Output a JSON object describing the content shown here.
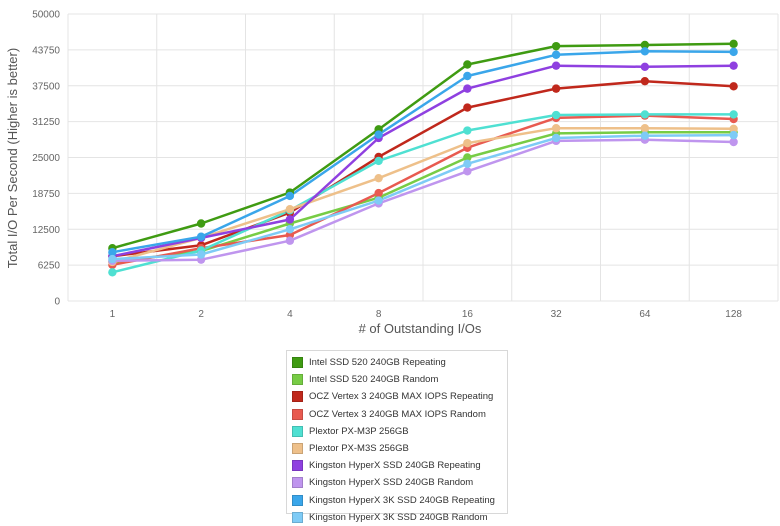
{
  "chart_data": {
    "type": "line",
    "xlabel": "# of Outstanding I/Os",
    "ylabel": "Total I/O Per Second (Higher is better)",
    "categories": [
      "1",
      "2",
      "4",
      "8",
      "16",
      "32",
      "64",
      "128"
    ],
    "y_ticks": [
      "0",
      "6250",
      "12500",
      "18750",
      "25000",
      "31250",
      "37500",
      "43750",
      "50000"
    ],
    "ylim": [
      0,
      50000
    ],
    "grid": true,
    "legend_position": "bottom",
    "series": [
      {
        "name": "Intel SSD 520 240GB Repeating",
        "color": "#3f9b12",
        "values": [
          9200,
          13500,
          18900,
          29900,
          41200,
          44400,
          44600,
          44800
        ]
      },
      {
        "name": "Intel SSD 520 240GB Random",
        "color": "#77cc45",
        "values": [
          6800,
          8700,
          13500,
          18000,
          25000,
          29200,
          29400,
          29400
        ]
      },
      {
        "name": "OCZ Vertex 3 240GB MAX IOPS Repeating",
        "color": "#c0281c",
        "values": [
          7800,
          9700,
          15400,
          25100,
          33700,
          37000,
          38300,
          37400
        ]
      },
      {
        "name": "OCZ Vertex 3 240GB MAX IOPS Random",
        "color": "#e85a50",
        "values": [
          6300,
          9200,
          11500,
          18800,
          26700,
          31900,
          32300,
          31700
        ]
      },
      {
        "name": "Plextor PX-M3P 256GB",
        "color": "#4fe0d2",
        "values": [
          5000,
          8800,
          15800,
          24400,
          29700,
          32400,
          32500,
          32500
        ]
      },
      {
        "name": "Plextor PX-M3S 256GB",
        "color": "#eec08a",
        "values": [
          6800,
          11000,
          16000,
          21400,
          27500,
          30100,
          30100,
          30000
        ]
      },
      {
        "name": "Kingston HyperX SSD 240GB Repeating",
        "color": "#8f40e0",
        "values": [
          7800,
          11000,
          14200,
          28400,
          37000,
          41000,
          40800,
          41000
        ]
      },
      {
        "name": "Kingston HyperX SSD 240GB Random",
        "color": "#bf95ee",
        "values": [
          7000,
          7200,
          10500,
          17000,
          22600,
          27900,
          28100,
          27700
        ]
      },
      {
        "name": "Kingston HyperX 3K SSD 240GB Repeating",
        "color": "#3aa6ea",
        "values": [
          8500,
          11200,
          18300,
          29000,
          39200,
          42900,
          43500,
          43400
        ]
      },
      {
        "name": "Kingston HyperX 3K SSD 240GB Random",
        "color": "#7ecbf6",
        "values": [
          7300,
          8100,
          12500,
          17500,
          23900,
          28400,
          28800,
          28900
        ]
      }
    ]
  }
}
